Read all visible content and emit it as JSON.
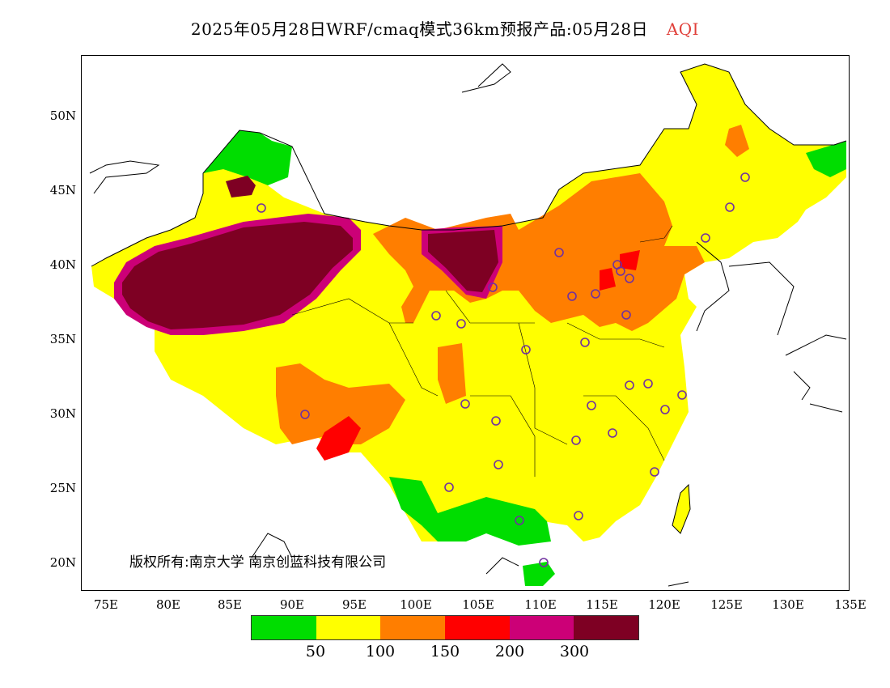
{
  "title": {
    "main": "2025年05月28日WRF/cmaq模式36km预报产品:05月28日",
    "variable": "AQI"
  },
  "axes": {
    "lat_labels": [
      "50N",
      "45N",
      "40N",
      "35N",
      "30N",
      "25N",
      "20N"
    ],
    "lon_labels": [
      "75E",
      "80E",
      "85E",
      "90E",
      "95E",
      "100E",
      "105E",
      "110E",
      "115E",
      "120E",
      "125E",
      "130E",
      "135E"
    ],
    "lat_range": [
      18,
      54
    ],
    "lon_range": [
      73,
      135
    ]
  },
  "copyright": "版权所有:南京大学 南京创蓝科技有限公司",
  "legend": {
    "colors": [
      "#00dd00",
      "#ffff00",
      "#ff7e00",
      "#ff0000",
      "#cc0077",
      "#7e0023"
    ],
    "thresholds": [
      "50",
      "100",
      "150",
      "200",
      "300"
    ]
  },
  "colors": {
    "good": "#00dd00",
    "moderate": "#ffff00",
    "sensitive": "#ff7e00",
    "unhealthy": "#ff0000",
    "very_unhealthy": "#cc0077",
    "hazardous": "#7e0023",
    "station_marker": "#7030a0",
    "title_accent": "#e0403a"
  }
}
